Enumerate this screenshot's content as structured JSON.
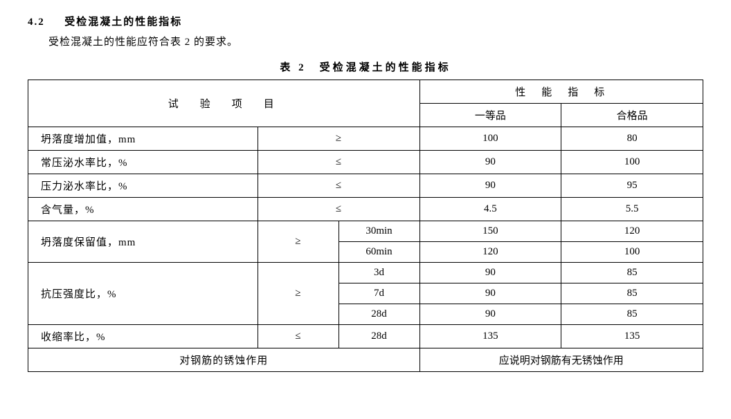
{
  "section": {
    "number": "4.2",
    "title": "受检混凝土的性能指标",
    "body": "受检混凝土的性能应符合表 2 的要求。"
  },
  "table": {
    "caption": "表 2　受检混凝土的性能指标",
    "header": {
      "item": "试　验　项　目",
      "spec": "性　能　指　标",
      "grade1": "一等品",
      "grade2": "合格品"
    },
    "rows": {
      "r1": {
        "label": "坍落度增加值，mm",
        "op": "≥",
        "v1": "100",
        "v2": "80"
      },
      "r2": {
        "label": "常压泌水率比，%",
        "op": "≤",
        "v1": "90",
        "v2": "100"
      },
      "r3": {
        "label": "压力泌水率比，%",
        "op": "≤",
        "v1": "90",
        "v2": "95"
      },
      "r4": {
        "label": "含气量，%",
        "op": "≤",
        "v1": "4.5",
        "v2": "5.5"
      },
      "r5": {
        "label": "坍落度保留值，mm",
        "op": "≥",
        "sub1": {
          "t": "30min",
          "v1": "150",
          "v2": "120"
        },
        "sub2": {
          "t": "60min",
          "v1": "120",
          "v2": "100"
        }
      },
      "r6": {
        "label": "抗压强度比，%",
        "op": "≥",
        "sub1": {
          "t": "3d",
          "v1": "90",
          "v2": "85"
        },
        "sub2": {
          "t": "7d",
          "v1": "90",
          "v2": "85"
        },
        "sub3": {
          "t": "28d",
          "v1": "90",
          "v2": "85"
        }
      },
      "r7": {
        "label": "收缩率比，%",
        "op": "≤",
        "t": "28d",
        "v1": "135",
        "v2": "135"
      },
      "r8": {
        "label": "对钢筋的锈蚀作用",
        "note": "应说明对钢筋有无锈蚀作用"
      }
    }
  }
}
